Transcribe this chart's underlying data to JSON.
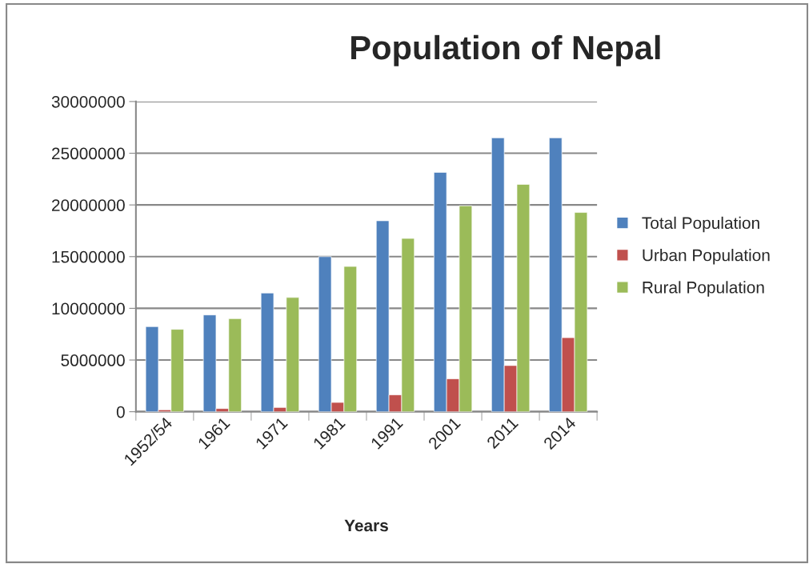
{
  "chart_data": {
    "type": "bar",
    "title": "Population of Nepal",
    "xlabel": "Years",
    "categories": [
      "1952/54",
      "1961",
      "1971",
      "1981",
      "1991",
      "2001",
      "2011",
      "2014"
    ],
    "series": [
      {
        "name": "Total Population",
        "color": "#4f81bd",
        "values": [
          8230000,
          9360000,
          11480000,
          15000000,
          18470000,
          23150000,
          26490000,
          26490000
        ]
      },
      {
        "name": "Urban Population",
        "color": "#c0504d",
        "values": [
          180000,
          310000,
          410000,
          900000,
          1630000,
          3180000,
          4470000,
          7160000
        ]
      },
      {
        "name": "Rural Population",
        "color": "#9bbb59",
        "values": [
          7970000,
          9000000,
          11050000,
          14050000,
          16760000,
          19920000,
          21990000,
          19270000
        ]
      }
    ],
    "ylim": [
      0,
      30000000
    ],
    "yticks": [
      0,
      5000000,
      10000000,
      15000000,
      20000000,
      25000000,
      30000000
    ],
    "grid": "y",
    "legend": "right"
  }
}
